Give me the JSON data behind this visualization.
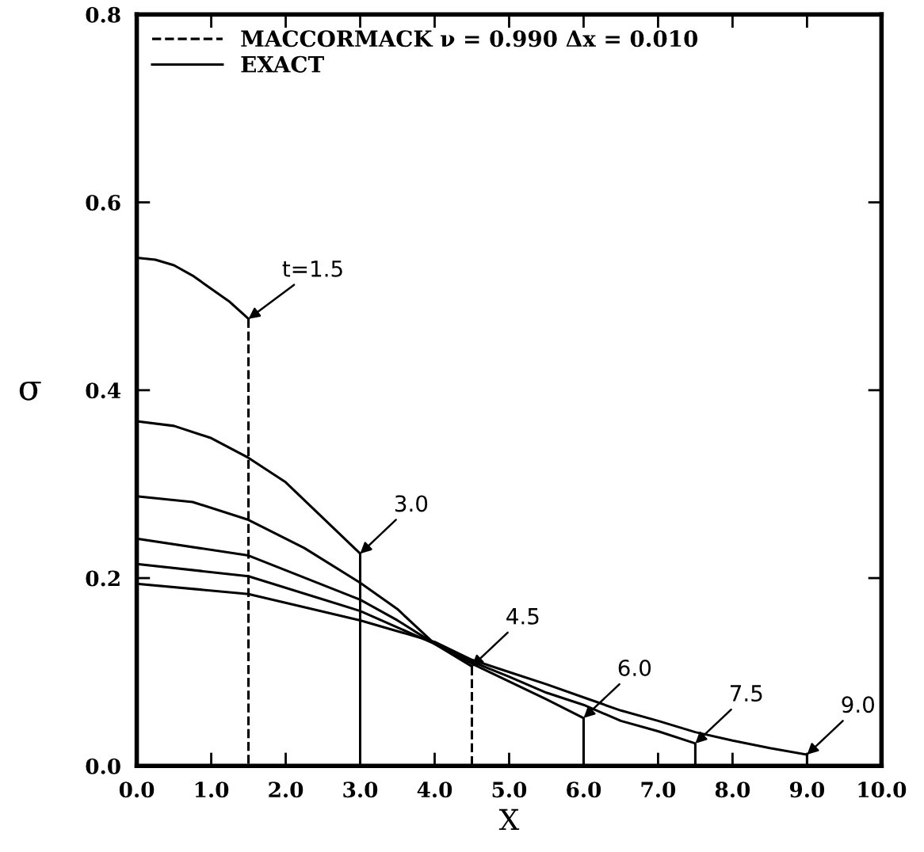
{
  "chart_data": {
    "type": "line",
    "xlabel": "X",
    "ylabel": "σ",
    "xlim": [
      0,
      10
    ],
    "ylim": [
      0,
      0.8
    ],
    "xticks": [
      {
        "value": 0,
        "label": "0.0"
      },
      {
        "value": 1,
        "label": "1.0"
      },
      {
        "value": 2,
        "label": "2.0"
      },
      {
        "value": 3,
        "label": "3.0"
      },
      {
        "value": 4,
        "label": "4.0"
      },
      {
        "value": 5,
        "label": "5.0"
      },
      {
        "value": 6,
        "label": "6.0"
      },
      {
        "value": 7,
        "label": "7.0"
      },
      {
        "value": 8,
        "label": "8.0"
      },
      {
        "value": 9,
        "label": "9.0"
      },
      {
        "value": 10,
        "label": "10.0"
      }
    ],
    "yticks": [
      {
        "value": 0,
        "label": "0.0"
      },
      0.2,
      0.4,
      0.6,
      0.8
    ],
    "grid": false,
    "legend": "top left",
    "series": [
      {
        "name": "MACCORMACK ν = 0.990 Δx = 0.010",
        "color": "#000000",
        "line_style": "dashed",
        "x": [
          1.5,
          1.5
        ],
        "values": [
          0.476,
          0
        ]
      },
      {
        "color": "#000000",
        "line_style": "dashed",
        "x": [
          4.5,
          4.5
        ],
        "values": [
          0.106,
          0
        ]
      },
      {
        "name": "EXACT",
        "color": "#000000",
        "line_style": "solid",
        "x": [
          0,
          0.25,
          0.5,
          0.75,
          1.0,
          1.25,
          1.5
        ],
        "values": [
          0.541,
          0.539,
          0.533,
          0.522,
          0.508,
          0.494,
          0.476
        ]
      },
      {
        "color": "#000000",
        "line_style": "solid",
        "x": [
          0,
          0.5,
          1.0,
          1.5,
          2.0,
          2.5,
          3.0,
          3.0
        ],
        "values": [
          0.367,
          0.362,
          0.349,
          0.328,
          0.302,
          0.264,
          0.226,
          0
        ]
      },
      {
        "color": "#000000",
        "line_style": "solid",
        "x": [
          0,
          0.75,
          1.5,
          2.25,
          3.0,
          3.5,
          4.0,
          4.5
        ],
        "values": [
          0.287,
          0.281,
          0.262,
          0.232,
          0.195,
          0.167,
          0.13,
          0.106
        ]
      },
      {
        "color": "#000000",
        "line_style": "solid",
        "x": [
          0,
          1.5,
          3.0,
          3.5,
          4.0,
          4.5,
          5.0,
          5.5,
          6.0,
          6.0
        ],
        "values": [
          0.242,
          0.224,
          0.177,
          0.155,
          0.13,
          0.109,
          0.09,
          0.071,
          0.051,
          0
        ]
      },
      {
        "color": "#000000",
        "line_style": "solid",
        "x": [
          0,
          1.5,
          3.0,
          4.0,
          4.5,
          5.0,
          5.5,
          6.0,
          6.5,
          7.0,
          7.5,
          7.5
        ],
        "values": [
          0.215,
          0.202,
          0.165,
          0.13,
          0.111,
          0.095,
          0.078,
          0.065,
          0.048,
          0.037,
          0.024,
          0
        ]
      },
      {
        "color": "#000000",
        "line_style": "solid",
        "x": [
          0,
          1.5,
          3.0,
          4.0,
          4.5,
          5.0,
          5.5,
          6.0,
          6.5,
          7.0,
          7.5,
          8.0,
          8.5,
          9.0,
          9.0
        ],
        "values": [
          0.194,
          0.183,
          0.155,
          0.132,
          0.113,
          0.1,
          0.087,
          0.073,
          0.059,
          0.048,
          0.036,
          0.027,
          0.019,
          0.012,
          0
        ]
      }
    ],
    "annotations": [
      {
        "text": "t=1.5",
        "x": 1.5,
        "y": 0.476
      },
      {
        "text": "3.0",
        "x": 3.0,
        "y": 0.226
      },
      {
        "text": "4.5",
        "x": 4.5,
        "y": 0.106
      },
      {
        "text": "6.0",
        "x": 6.0,
        "y": 0.051
      },
      {
        "text": "7.5",
        "x": 7.5,
        "y": 0.024
      },
      {
        "text": "9.0",
        "x": 9.0,
        "y": 0.012
      }
    ]
  }
}
